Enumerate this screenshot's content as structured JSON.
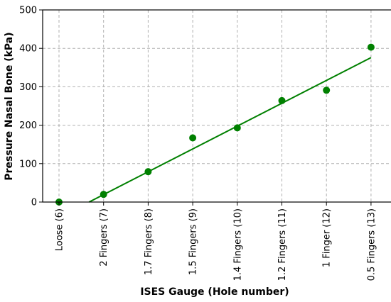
{
  "chart_data": {
    "type": "scatter",
    "xlabel": "ISES Gauge (Hole number)",
    "ylabel": "Pressure Nasal Bone (kPa)",
    "categories": [
      "Loose (6)",
      "2 Fingers (7)",
      "1.7 Fingers (8)",
      "1.5 Fingers (9)",
      "1.4 Fingers (10)",
      "1.2 Fingers (11)",
      "1 Finger (12)",
      "0.5 Fingers (13)"
    ],
    "ylim": [
      0,
      500
    ],
    "yticks": [
      0,
      100,
      200,
      300,
      400,
      500
    ],
    "grid": true,
    "color": "#008000",
    "series": [
      {
        "values": [
          0,
          20,
          79,
          167,
          193,
          264,
          291,
          403
        ]
      }
    ],
    "trendline": {
      "type": "linear",
      "x_start_category": "Loose (6)",
      "y_start": -40,
      "x_end_category": "0.5 Fingers (13)",
      "y_end": 376
    }
  }
}
